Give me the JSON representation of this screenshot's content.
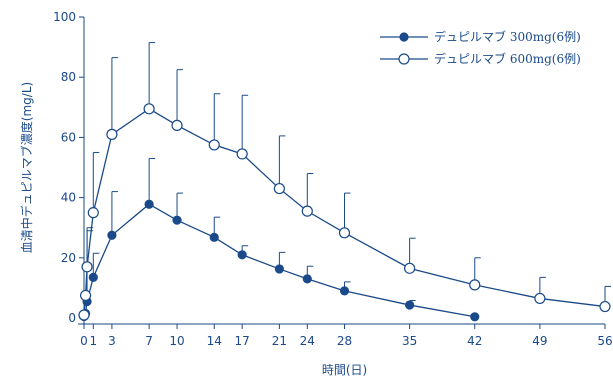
{
  "chart_data": {
    "type": "line",
    "xlabel": "時間(日)",
    "ylabel": "血清中デュピルマブ濃度(mg/L)",
    "xlim": [
      0,
      56
    ],
    "ylim": [
      0,
      100
    ],
    "x_ticks": [
      0,
      1,
      3,
      7,
      10,
      14,
      17,
      21,
      24,
      28,
      35,
      42,
      49,
      56
    ],
    "y_ticks": [
      0,
      20,
      40,
      60,
      80,
      100
    ],
    "grid": false,
    "legend_position": "top-right",
    "series": [
      {
        "name": "デュピルマブ 300mg(6例)",
        "marker": "filled-circle",
        "color": "#1a4a8a",
        "x": [
          0,
          0.17,
          0.33,
          1,
          3,
          7,
          10,
          14,
          17,
          21,
          24,
          28,
          35,
          42
        ],
        "y": [
          0.5,
          1.5,
          5.5,
          13.5,
          27.5,
          37.8,
          32.5,
          26.8,
          21,
          16.3,
          13,
          9,
          4.3,
          0.4
        ],
        "error_upper": [
          null,
          null,
          29,
          21.5,
          42,
          53,
          41.5,
          33.5,
          24,
          21.8,
          17.2,
          12,
          5.8,
          null
        ]
      },
      {
        "name": "デュピルマブ 600mg(6例)",
        "marker": "open-circle",
        "color": "#1a4a8a",
        "x": [
          0,
          0.17,
          0.33,
          1,
          3,
          7,
          10,
          14,
          17,
          21,
          24,
          28,
          35,
          42,
          49,
          56
        ],
        "y": [
          1,
          7.5,
          17,
          35,
          61,
          69.5,
          64,
          57.5,
          54.5,
          43,
          35.5,
          28.3,
          16.5,
          11,
          6.5,
          3.8
        ],
        "error_upper": [
          null,
          null,
          30,
          55,
          86.5,
          91.5,
          82.5,
          74.5,
          74,
          60.5,
          48,
          41.5,
          26.5,
          20,
          13.5,
          10.5
        ]
      }
    ]
  }
}
